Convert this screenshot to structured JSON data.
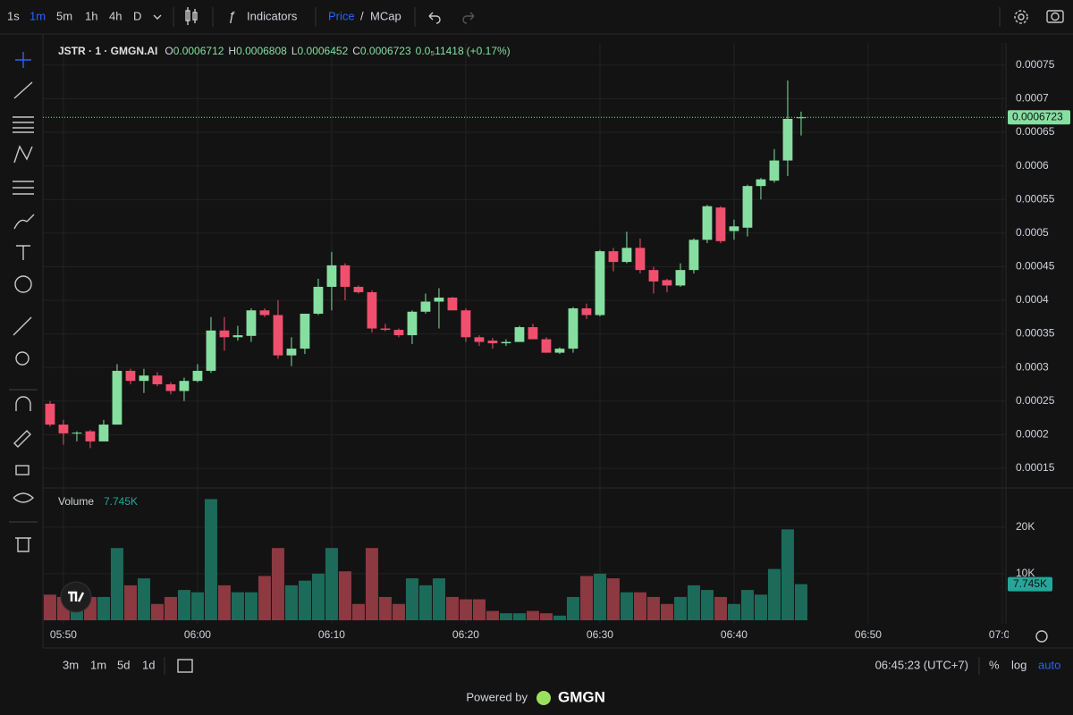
{
  "ui": {
    "intervals": [
      "1s",
      "1m",
      "5m",
      "1h",
      "4h",
      "D"
    ],
    "indicators": "Indicators",
    "price": "Price",
    "slash": "/",
    "mcap": "MCap",
    "ranges": [
      "3m",
      "1m",
      "5d",
      "1d"
    ],
    "clock": "06:45:23 (UTC+7)",
    "percent": "%",
    "log": "log",
    "auto": "auto",
    "powered": "Powered by",
    "brand": "GMGN"
  },
  "chart_data": {
    "type": "candlestick",
    "symbol": "JSTR · 1 · GMGN.AI",
    "ohlc_prefixes": [
      "O",
      "H",
      "L",
      "C"
    ],
    "change": "0.0₅11418",
    "change_pct": "(+0.17%)",
    "volume_title": "Volume",
    "volume_last_label": "7.745K",
    "open": [
      0.000246,
      0.000215,
      0.000203,
      0.000205,
      0.00019,
      0.000215,
      0.000295,
      0.00028,
      0.000288,
      0.000275,
      0.000265,
      0.00028,
      0.000295,
      0.000355,
      0.000345,
      0.000347,
      0.000385,
      0.000378,
      0.000318,
      0.000328,
      0.00038,
      0.00042,
      0.000452,
      0.00042,
      0.000412,
      0.000358,
      0.000356,
      0.000348,
      0.000383,
      0.000398,
      0.000404,
      0.000385,
      0.000345,
      0.00034,
      0.000336,
      0.000338,
      0.00036,
      0.000342,
      0.000322,
      0.000328,
      0.000388,
      0.000378,
      0.000473,
      0.000457,
      0.000478,
      0.000445,
      0.00043,
      0.000422,
      0.000445,
      0.00049,
      0.000538,
      0.000503,
      0.000508,
      0.00057,
      0.000578,
      0.000608,
      0.0006712
    ],
    "high": [
      0.00025,
      0.000222,
      0.000205,
      0.000207,
      0.000222,
      0.000305,
      0.000298,
      0.000298,
      0.000293,
      0.000278,
      0.000285,
      0.000305,
      0.000375,
      0.000375,
      0.000362,
      0.000388,
      0.000388,
      0.0004,
      0.000345,
      0.00038,
      0.000432,
      0.000472,
      0.000455,
      0.000422,
      0.000415,
      0.000365,
      0.000358,
      0.000385,
      0.00041,
      0.000418,
      0.000405,
      0.000388,
      0.000348,
      0.000344,
      0.000342,
      0.000362,
      0.000365,
      0.000345,
      0.00033,
      0.00039,
      0.000395,
      0.000475,
      0.000478,
      0.000502,
      0.000492,
      0.00045,
      0.000432,
      0.000455,
      0.000492,
      0.000542,
      0.00054,
      0.00052,
      0.000572,
      0.000582,
      0.000625,
      0.000727,
      0.0006808
    ],
    "low": [
      0.000212,
      0.000185,
      0.00019,
      0.00018,
      0.00019,
      0.000215,
      0.000275,
      0.000262,
      0.000272,
      0.00026,
      0.00025,
      0.000278,
      0.000292,
      0.000325,
      0.00034,
      0.000338,
      0.000375,
      0.000313,
      0.000302,
      0.00032,
      0.000378,
      0.000385,
      0.0004,
      0.00041,
      0.000352,
      0.000354,
      0.000345,
      0.000335,
      0.00038,
      0.000358,
      0.000385,
      0.000338,
      0.000332,
      0.000328,
      0.000332,
      0.000338,
      0.000342,
      0.000322,
      0.00032,
      0.000322,
      0.000372,
      0.000376,
      0.000443,
      0.000455,
      0.00044,
      0.00041,
      0.000412,
      0.00042,
      0.00044,
      0.000485,
      0.000485,
      0.00049,
      0.000495,
      0.00055,
      0.000575,
      0.000585,
      0.0006452
    ],
    "close": [
      0.000215,
      0.000202,
      0.000203,
      0.00019,
      0.000215,
      0.000295,
      0.00028,
      0.000288,
      0.000275,
      0.000265,
      0.00028,
      0.000295,
      0.000355,
      0.000345,
      0.000348,
      0.000385,
      0.000378,
      0.000318,
      0.000328,
      0.00038,
      0.00042,
      0.000452,
      0.00042,
      0.000412,
      0.000358,
      0.000356,
      0.000348,
      0.000383,
      0.000398,
      0.000404,
      0.000385,
      0.000345,
      0.000338,
      0.000336,
      0.000338,
      0.00036,
      0.000342,
      0.000322,
      0.000328,
      0.000388,
      0.000378,
      0.000473,
      0.000457,
      0.000478,
      0.000445,
      0.000428,
      0.000422,
      0.000445,
      0.00049,
      0.00054,
      0.000488,
      0.00051,
      0.00057,
      0.00058,
      0.000608,
      0.00067,
      0.0006723
    ],
    "volume": [
      5500,
      5000,
      5000,
      5000,
      5000,
      15500,
      7500,
      9000,
      3500,
      5000,
      6500,
      6000,
      26000,
      7500,
      6000,
      6000,
      9500,
      15500,
      7500,
      8500,
      10000,
      15500,
      10500,
      3500,
      15500,
      5000,
      3500,
      9000,
      7500,
      9000,
      5000,
      4500,
      4500,
      2000,
      1500,
      1500,
      2000,
      1500,
      1000,
      5000,
      9500,
      10000,
      9000,
      6000,
      6000,
      5000,
      3500,
      5000,
      7500,
      6500,
      5000,
      3500,
      6500,
      5500,
      11000,
      19500,
      7745
    ],
    "ylim": [
      0.000122,
      0.000783
    ],
    "yticks": [
      0.00075,
      0.0007,
      0.00065,
      0.0006,
      0.00055,
      0.0005,
      0.00045,
      0.0004,
      0.00035,
      0.0003,
      0.00025,
      0.0002,
      0.00015
    ],
    "y2lim": [
      0,
      28000
    ],
    "y2ticks": [
      {
        "value": 20000,
        "label": "20K"
      },
      {
        "value": 10000,
        "label": "10K"
      }
    ],
    "xlim": [
      -0.53,
      71.27
    ],
    "xticks": [
      {
        "value": 1,
        "label": "05:50"
      },
      {
        "value": 11,
        "label": "06:00"
      },
      {
        "value": 21,
        "label": "06:10"
      },
      {
        "value": 31,
        "label": "06:20"
      },
      {
        "value": 41,
        "label": "06:30"
      },
      {
        "value": 51,
        "label": "06:40"
      },
      {
        "value": 61,
        "label": "06:50"
      },
      {
        "value": 71,
        "label": "07:00"
      }
    ],
    "grid": true,
    "log": false,
    "up_color": "#86dfa0",
    "down_color": "#f0506e",
    "volume_up_color": "#1c6b5a",
    "volume_down_color": "#8c3942",
    "last_price_color": "#86dfa0"
  }
}
